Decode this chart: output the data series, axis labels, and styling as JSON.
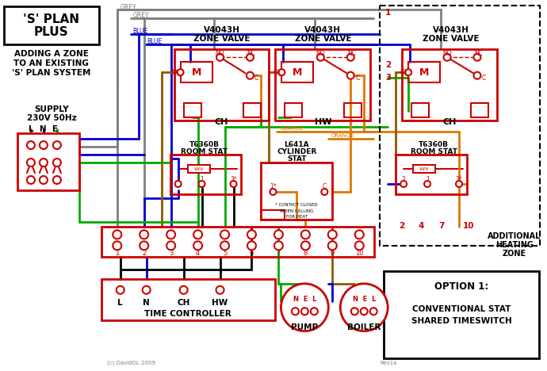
{
  "bg_color": "#ffffff",
  "title1": "'S' PLAN",
  "title2": "PLUS",
  "subtitle": "ADDING A ZONE\nTO AN EXISTING\n'S' PLAN SYSTEM",
  "supply_label": "SUPPLY\n230V 50Hz",
  "lne": "L  N  E",
  "option_text1": "OPTION 1:",
  "option_text2": "CONVENTIONAL STAT",
  "option_text3": "SHARED TIMESWITCH",
  "grey": "#808080",
  "blue": "#0000cc",
  "green": "#00aa00",
  "orange": "#dd7700",
  "brown": "#8B5A00",
  "black": "#000000",
  "red": "#cc0000",
  "white": "#ffffff"
}
